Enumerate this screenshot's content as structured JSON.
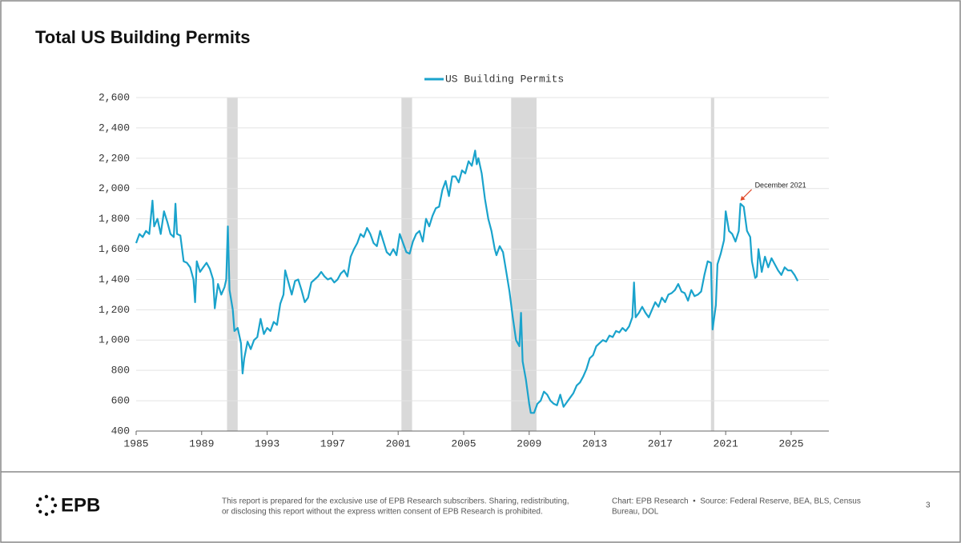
{
  "chart_data": {
    "type": "line",
    "title": "Total US Building Permits",
    "x": [
      1985.0,
      1985.2,
      1985.4,
      1985.6,
      1985.8,
      1986.0,
      1986.1,
      1986.3,
      1986.5,
      1986.7,
      1986.9,
      1987.1,
      1987.3,
      1987.4,
      1987.5,
      1987.7,
      1987.9,
      1988.1,
      1988.3,
      1988.5,
      1988.6,
      1988.7,
      1988.9,
      1989.1,
      1989.3,
      1989.5,
      1989.7,
      1989.8,
      1990.0,
      1990.2,
      1990.4,
      1990.5,
      1990.6,
      1990.7,
      1990.9,
      1991.0,
      1991.2,
      1991.4,
      1991.5,
      1991.6,
      1991.8,
      1992.0,
      1992.2,
      1992.4,
      1992.6,
      1992.8,
      1993.0,
      1993.2,
      1993.4,
      1993.6,
      1993.8,
      1994.0,
      1994.1,
      1994.3,
      1994.5,
      1994.7,
      1994.9,
      1995.1,
      1995.3,
      1995.5,
      1995.7,
      1995.9,
      1996.1,
      1996.3,
      1996.5,
      1996.7,
      1996.9,
      1997.1,
      1997.3,
      1997.5,
      1997.7,
      1997.9,
      1998.1,
      1998.3,
      1998.5,
      1998.7,
      1998.9,
      1999.1,
      1999.3,
      1999.5,
      1999.7,
      1999.9,
      2000.1,
      2000.3,
      2000.5,
      2000.7,
      2000.9,
      2001.1,
      2001.3,
      2001.5,
      2001.7,
      2001.9,
      2002.1,
      2002.3,
      2002.5,
      2002.7,
      2002.9,
      2003.1,
      2003.3,
      2003.5,
      2003.7,
      2003.9,
      2004.1,
      2004.3,
      2004.5,
      2004.7,
      2004.9,
      2005.1,
      2005.3,
      2005.5,
      2005.7,
      2005.8,
      2005.9,
      2006.1,
      2006.3,
      2006.5,
      2006.7,
      2006.9,
      2007.0,
      2007.2,
      2007.4,
      2007.6,
      2007.8,
      2008.0,
      2008.2,
      2008.4,
      2008.5,
      2008.6,
      2008.8,
      2009.0,
      2009.1,
      2009.3,
      2009.5,
      2009.7,
      2009.9,
      2010.1,
      2010.3,
      2010.5,
      2010.7,
      2010.9,
      2011.1,
      2011.3,
      2011.5,
      2011.7,
      2011.9,
      2012.1,
      2012.3,
      2012.5,
      2012.7,
      2012.9,
      2013.1,
      2013.3,
      2013.5,
      2013.7,
      2013.9,
      2014.1,
      2014.3,
      2014.5,
      2014.7,
      2014.9,
      2015.1,
      2015.3,
      2015.4,
      2015.5,
      2015.7,
      2015.9,
      2016.1,
      2016.3,
      2016.5,
      2016.7,
      2016.9,
      2017.1,
      2017.3,
      2017.5,
      2017.7,
      2017.9,
      2018.1,
      2018.3,
      2018.5,
      2018.7,
      2018.9,
      2019.1,
      2019.3,
      2019.5,
      2019.7,
      2019.9,
      2020.1,
      2020.2,
      2020.4,
      2020.5,
      2020.7,
      2020.9,
      2021.0,
      2021.2,
      2021.4,
      2021.6,
      2021.8,
      2021.9,
      2022.1,
      2022.3,
      2022.5,
      2022.6,
      2022.8,
      2022.9,
      2023.0,
      2023.2,
      2023.4,
      2023.6,
      2023.8,
      2024.0,
      2024.2,
      2024.4,
      2024.6,
      2024.8,
      2025.0,
      2025.2,
      2025.4
    ],
    "series": [
      {
        "name": "US Building Permits",
        "color": "#1aa3cc",
        "values": [
          1640,
          1700,
          1680,
          1720,
          1700,
          1920,
          1750,
          1800,
          1700,
          1850,
          1780,
          1700,
          1680,
          1900,
          1700,
          1690,
          1520,
          1510,
          1480,
          1400,
          1250,
          1520,
          1450,
          1480,
          1510,
          1470,
          1400,
          1210,
          1370,
          1300,
          1350,
          1400,
          1750,
          1330,
          1200,
          1060,
          1080,
          980,
          780,
          880,
          990,
          940,
          1000,
          1020,
          1140,
          1040,
          1080,
          1060,
          1120,
          1100,
          1240,
          1300,
          1460,
          1380,
          1300,
          1390,
          1400,
          1330,
          1250,
          1280,
          1380,
          1400,
          1420,
          1450,
          1420,
          1400,
          1410,
          1380,
          1400,
          1440,
          1460,
          1420,
          1550,
          1600,
          1640,
          1700,
          1680,
          1740,
          1700,
          1640,
          1620,
          1720,
          1650,
          1580,
          1560,
          1600,
          1560,
          1700,
          1640,
          1580,
          1570,
          1650,
          1700,
          1720,
          1650,
          1800,
          1750,
          1820,
          1870,
          1880,
          1990,
          2050,
          1950,
          2080,
          2080,
          2040,
          2120,
          2100,
          2180,
          2150,
          2250,
          2160,
          2200,
          2100,
          1930,
          1800,
          1720,
          1600,
          1560,
          1620,
          1580,
          1450,
          1320,
          1150,
          1000,
          960,
          1180,
          860,
          740,
          580,
          520,
          520,
          580,
          600,
          660,
          640,
          600,
          580,
          570,
          640,
          560,
          590,
          620,
          650,
          700,
          720,
          760,
          810,
          880,
          900,
          960,
          980,
          1000,
          990,
          1030,
          1020,
          1060,
          1050,
          1080,
          1060,
          1090,
          1150,
          1380,
          1150,
          1180,
          1220,
          1180,
          1150,
          1200,
          1250,
          1220,
          1280,
          1250,
          1300,
          1310,
          1330,
          1370,
          1320,
          1310,
          1260,
          1330,
          1290,
          1300,
          1320,
          1430,
          1520,
          1510,
          1070,
          1230,
          1500,
          1570,
          1660,
          1850,
          1720,
          1700,
          1650,
          1720,
          1900,
          1880,
          1720,
          1680,
          1520,
          1410,
          1420,
          1600,
          1450,
          1550,
          1480,
          1540,
          1500,
          1460,
          1430,
          1480,
          1460,
          1460,
          1430,
          1390
        ]
      }
    ],
    "xlim": [
      1985,
      2027.3
    ],
    "xticks": [
      1985,
      1989,
      1993,
      1997,
      2001,
      2005,
      2009,
      2013,
      2017,
      2021,
      2025
    ],
    "ylim": [
      400,
      2600
    ],
    "yticks": [
      400,
      600,
      800,
      {
        "value": 1000,
        "label": "1,000"
      },
      {
        "value": 1200,
        "label": "1,200"
      },
      {
        "value": 1400,
        "label": "1,400"
      },
      {
        "value": 1600,
        "label": "1,600"
      },
      {
        "value": 1800,
        "label": "1,800"
      },
      {
        "value": 2000,
        "label": "2,000"
      },
      {
        "value": 2200,
        "label": "2,200"
      },
      {
        "value": 2400,
        "label": "2,400"
      },
      {
        "value": 2600,
        "label": "2,600"
      }
    ],
    "grid": true,
    "legend": "top",
    "recessions": [
      [
        1990.55,
        1991.2
      ],
      [
        2001.2,
        2001.85
      ],
      [
        2007.9,
        2009.45
      ],
      [
        2020.1,
        2020.3
      ]
    ],
    "annotations": [
      {
        "text": "December 2021",
        "x": 2021.9,
        "value": 1920
      }
    ]
  },
  "footer": {
    "brand": "EPB",
    "disclaimer": [
      "This report is prepared for the exclusive use of EPB Research subscribers. Sharing, redistributing,",
      "or disclosing this report without the express written consent of EPB Research is prohibited."
    ],
    "source": [
      "Chart: EPB Research  •  Source: Federal Reserve, BEA, BLS, Census",
      "Bureau, DOL"
    ],
    "page": "3"
  }
}
